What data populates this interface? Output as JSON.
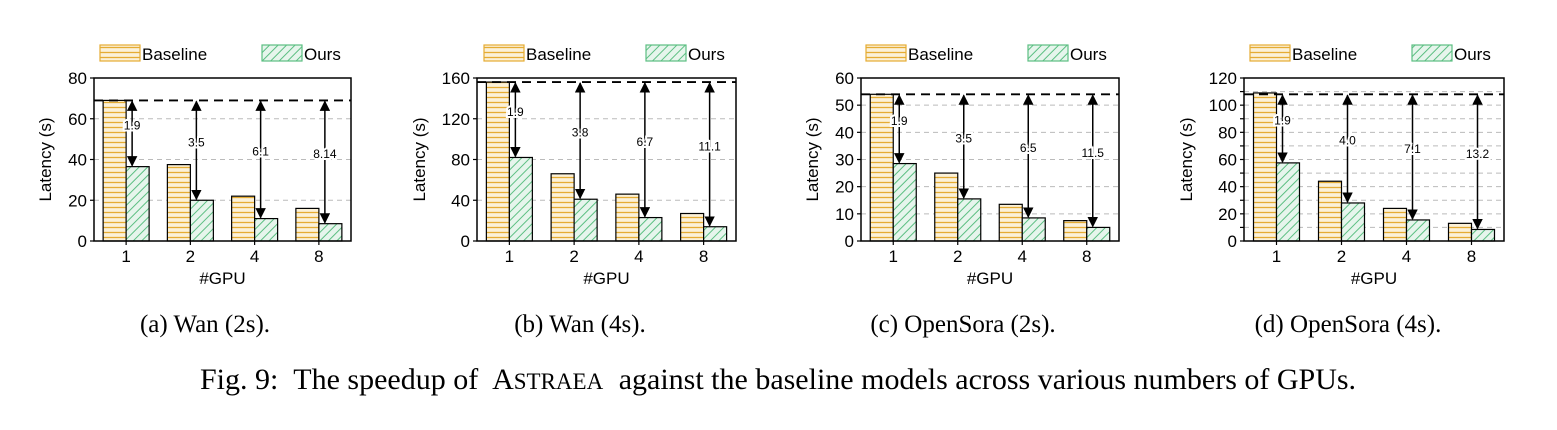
{
  "figure": {
    "caption_prefix": "Fig. 9:",
    "caption_before": "The speedup of",
    "caption_system_first": "A",
    "caption_system_rest": "STRAEA",
    "caption_after": "against the baseline models across various numbers of GPUs."
  },
  "colors": {
    "baseline_fill": "#fbf1d8",
    "baseline_stripe": "#e5ac33",
    "ours_fill": "#e6f5ec",
    "ours_stripe": "#5cbf82",
    "axis": "#000000",
    "grid": "#bbbbbb"
  },
  "chart_data": [
    {
      "type": "bar",
      "caption": "(a) Wan (2s).",
      "xlabel": "#GPU",
      "ylabel": "Latency (s)",
      "categories": [
        "1",
        "2",
        "4",
        "8"
      ],
      "ylim": [
        0,
        80
      ],
      "yticks": [
        0,
        20,
        40,
        60,
        80
      ],
      "series": [
        {
          "name": "Baseline",
          "pattern": "horizontal",
          "values": [
            69,
            37.5,
            22,
            16
          ]
        },
        {
          "name": "Ours",
          "pattern": "diagonal",
          "values": [
            36.5,
            20,
            11,
            8.5
          ]
        }
      ],
      "reference_line": 69,
      "speedup_labels": [
        "1.9",
        "3.5",
        "6.1",
        "8.14"
      ],
      "grid": "horizontal dashed",
      "legend": "top"
    },
    {
      "type": "bar",
      "caption": "(b) Wan (4s).",
      "xlabel": "#GPU",
      "ylabel": "Latency (s)",
      "categories": [
        "1",
        "2",
        "4",
        "8"
      ],
      "ylim": [
        0,
        160
      ],
      "yticks": [
        0,
        40,
        80,
        120,
        160
      ],
      "series": [
        {
          "name": "Baseline",
          "pattern": "horizontal",
          "values": [
            156,
            66,
            46,
            27
          ]
        },
        {
          "name": "Ours",
          "pattern": "diagonal",
          "values": [
            82,
            41,
            23,
            14
          ]
        }
      ],
      "reference_line": 156,
      "speedup_labels": [
        "1.9",
        "3.8",
        "6.7",
        "11.1"
      ],
      "grid": "horizontal dashed",
      "legend": "top"
    },
    {
      "type": "bar",
      "caption": "(c) OpenSora (2s).",
      "xlabel": "#GPU",
      "ylabel": "Latency (s)",
      "categories": [
        "1",
        "2",
        "4",
        "8"
      ],
      "ylim": [
        0,
        60
      ],
      "yticks": [
        0,
        10,
        20,
        30,
        40,
        50,
        60
      ],
      "series": [
        {
          "name": "Baseline",
          "pattern": "horizontal",
          "values": [
            54,
            25,
            13.5,
            7.5
          ]
        },
        {
          "name": "Ours",
          "pattern": "diagonal",
          "values": [
            28.5,
            15.5,
            8.5,
            5
          ]
        }
      ],
      "reference_line": 54,
      "speedup_labels": [
        "1.9",
        "3.5",
        "6.5",
        "11.5"
      ],
      "grid": "horizontal dashed",
      "legend": "top"
    },
    {
      "type": "bar",
      "caption": "(d) OpenSora (4s).",
      "xlabel": "#GPU",
      "ylabel": "Latency (s)",
      "categories": [
        "1",
        "2",
        "4",
        "8"
      ],
      "ylim": [
        0,
        120
      ],
      "yticks": [
        0,
        10,
        20,
        30,
        40,
        50,
        60,
        70,
        80,
        90,
        100,
        110,
        120
      ],
      "yticks_labeled": [
        0,
        20,
        40,
        60,
        80,
        100,
        120
      ],
      "series": [
        {
          "name": "Baseline",
          "pattern": "horizontal",
          "values": [
            109,
            44,
            24,
            13
          ]
        },
        {
          "name": "Ours",
          "pattern": "diagonal",
          "values": [
            57.5,
            28,
            15.5,
            8.5
          ]
        }
      ],
      "reference_line": 108,
      "speedup_labels": [
        "1.9",
        "4.0",
        "7.1",
        "13.2"
      ],
      "grid": "horizontal dashed",
      "legend": "top"
    }
  ]
}
